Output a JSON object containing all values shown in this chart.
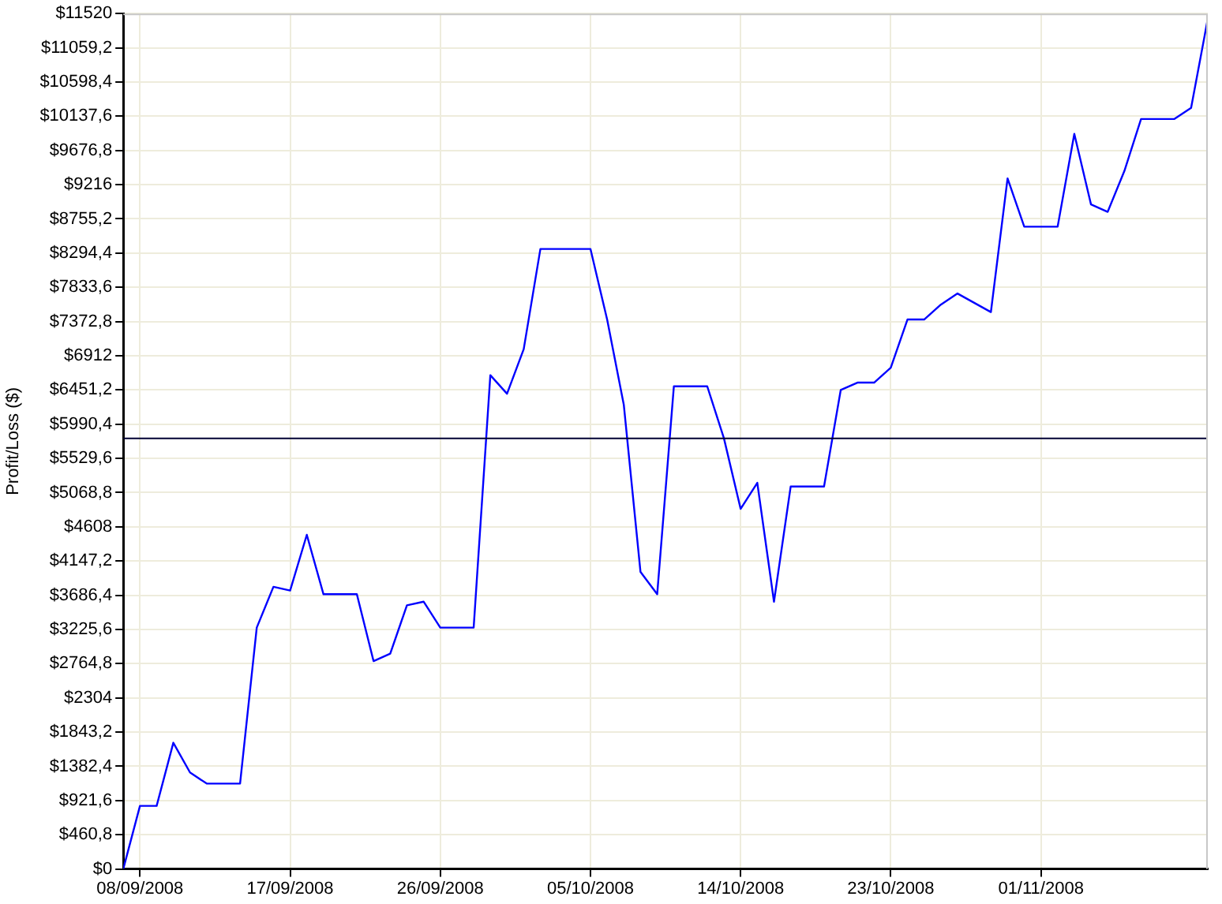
{
  "chart_data": {
    "type": "line",
    "ylabel": "Profit/Loss ($)",
    "x": [
      "2008-09-07",
      "2008-09-08",
      "2008-09-09",
      "2008-09-10",
      "2008-09-11",
      "2008-09-12",
      "2008-09-14",
      "2008-09-15",
      "2008-09-16",
      "2008-09-17",
      "2008-09-18",
      "2008-09-19",
      "2008-09-21",
      "2008-09-22",
      "2008-09-23",
      "2008-09-24",
      "2008-09-25",
      "2008-09-26",
      "2008-09-28",
      "2008-09-29",
      "2008-09-30",
      "2008-10-01",
      "2008-10-02",
      "2008-10-03",
      "2008-10-05",
      "2008-10-06",
      "2008-10-07",
      "2008-10-08",
      "2008-10-09",
      "2008-10-10",
      "2008-10-12",
      "2008-10-13",
      "2008-10-14",
      "2008-10-15",
      "2008-10-16",
      "2008-10-17",
      "2008-10-19",
      "2008-10-20",
      "2008-10-21",
      "2008-10-22",
      "2008-10-23",
      "2008-10-24",
      "2008-10-25",
      "2008-10-26",
      "2008-10-27",
      "2008-10-29",
      "2008-10-30",
      "2008-10-31",
      "2008-11-02",
      "2008-11-03",
      "2008-11-04",
      "2008-11-05",
      "2008-11-06",
      "2008-11-07",
      "2008-11-09",
      "2008-11-10",
      "2008-11-11"
    ],
    "series": [
      {
        "color": "#0000ff",
        "values": [
          0,
          850,
          850,
          1700,
          1300,
          1150,
          1150,
          3250,
          3800,
          3750,
          4500,
          3700,
          3700,
          2800,
          2900,
          3550,
          3600,
          3250,
          3250,
          6650,
          6400,
          7000,
          8350,
          8350,
          8350,
          7400,
          6250,
          4000,
          3700,
          6500,
          6500,
          5800,
          4850,
          5200,
          3600,
          5150,
          5150,
          6450,
          6550,
          6550,
          6750,
          7400,
          7400,
          7600,
          7750,
          7500,
          9300,
          8650,
          8650,
          9900,
          8950,
          8850,
          9400,
          10100,
          10100,
          10250,
          11450
        ]
      }
    ],
    "xlim": [
      "2008-09-07",
      "2008-11-11"
    ],
    "xticks": [
      {
        "value": "2008-09-08",
        "label": "08/09/2008"
      },
      {
        "value": "2008-09-17",
        "label": "17/09/2008"
      },
      {
        "value": "2008-09-26",
        "label": "26/09/2008"
      },
      {
        "value": "2008-10-05",
        "label": "05/10/2008"
      },
      {
        "value": "2008-10-14",
        "label": "14/10/2008"
      },
      {
        "value": "2008-10-23",
        "label": "23/10/2008"
      },
      {
        "value": "2008-11-01",
        "label": "01/11/2008"
      }
    ],
    "ylim": [
      0,
      11520
    ],
    "yticks": [
      {
        "value": 0,
        "label": "$0"
      },
      {
        "value": 460.8,
        "label": "$460,8"
      },
      {
        "value": 921.6,
        "label": "$921,6"
      },
      {
        "value": 1382.4,
        "label": "$1382,4"
      },
      {
        "value": 1843.2,
        "label": "$1843,2"
      },
      {
        "value": 2304,
        "label": "$2304"
      },
      {
        "value": 2764.8,
        "label": "$2764,8"
      },
      {
        "value": 3225.6,
        "label": "$3225,6"
      },
      {
        "value": 3686.4,
        "label": "$3686,4"
      },
      {
        "value": 4147.2,
        "label": "$4147,2"
      },
      {
        "value": 4608,
        "label": "$4608"
      },
      {
        "value": 5068.8,
        "label": "$5068,8"
      },
      {
        "value": 5529.6,
        "label": "$5529,6"
      },
      {
        "value": 5990.4,
        "label": "$5990,4"
      },
      {
        "value": 6451.2,
        "label": "$6451,2"
      },
      {
        "value": 6912,
        "label": "$6912"
      },
      {
        "value": 7372.8,
        "label": "$7372,8"
      },
      {
        "value": 7833.6,
        "label": "$7833,6"
      },
      {
        "value": 8294.4,
        "label": "$8294,4"
      },
      {
        "value": 8755.2,
        "label": "$8755,2"
      },
      {
        "value": 9216,
        "label": "$9216"
      },
      {
        "value": 9676.8,
        "label": "$9676,8"
      },
      {
        "value": 10137.6,
        "label": "$10137,6"
      },
      {
        "value": 10598.4,
        "label": "$10598,4"
      },
      {
        "value": 11059.2,
        "label": "$11059,2"
      },
      {
        "value": 11520,
        "label": "$11520"
      }
    ],
    "ref_lines": [
      {
        "axis": "y",
        "value": 5800,
        "color": "#000033"
      }
    ],
    "grid": true,
    "legend": false,
    "marker": "none",
    "line_style": "solid"
  }
}
